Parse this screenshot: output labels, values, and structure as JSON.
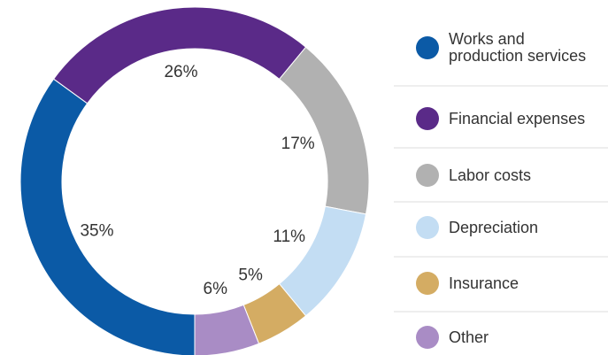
{
  "chart_data": {
    "type": "donut",
    "categories": [
      "Works and production services",
      "Financial expenses",
      "Labor costs",
      "Depreciation",
      "Insurance",
      "Other"
    ],
    "values": [
      35,
      26,
      17,
      11,
      5,
      6
    ],
    "value_labels": [
      "35%",
      "26%",
      "17%",
      "11%",
      "5%",
      "6%"
    ],
    "colors": [
      "#0b5aa6",
      "#5a2a88",
      "#b1b1b1",
      "#c3ddf3",
      "#d4ac63",
      "#a98cc5"
    ],
    "legend": "right"
  }
}
